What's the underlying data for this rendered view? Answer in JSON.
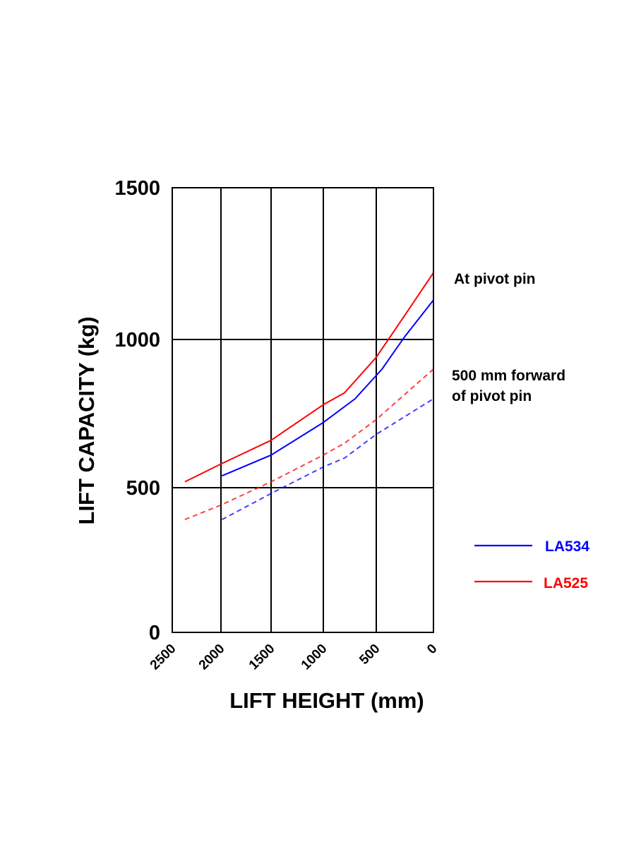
{
  "chart_data": {
    "type": "line",
    "title": "",
    "xlabel": "LIFT HEIGHT (mm)",
    "ylabel": "LIFT CAPACITY (kg)",
    "xlim": [
      2500,
      0
    ],
    "ylim": [
      0,
      1500
    ],
    "x_inverted": true,
    "x_ticks": [
      2500,
      2000,
      1500,
      1000,
      500,
      0
    ],
    "y_ticks": [
      0,
      500,
      1000,
      1500
    ],
    "x_tick_labels": [
      "2500",
      "2000",
      "1500",
      "1000",
      "500",
      "0"
    ],
    "y_tick_labels": [
      "0",
      "500",
      "1000",
      "1500"
    ],
    "grid": true,
    "legend_position": "right",
    "annotations": {
      "pivot": "At pivot pin",
      "forward_line1": "500 mm forward",
      "forward_line2": "of pivot pin"
    },
    "colors": {
      "LA534": "#0000ff",
      "LA525": "#ff0000"
    },
    "legend": [
      {
        "name": "LA534",
        "color": "#0000ff"
      },
      {
        "name": "LA525",
        "color": "#ff0000"
      }
    ],
    "series": [
      {
        "name": "LA534",
        "condition": "At pivot pin",
        "style": "solid",
        "color": "#0000ff",
        "x": [
          1990,
          1500,
          1000,
          700,
          450,
          250,
          0
        ],
        "y": [
          540,
          610,
          720,
          800,
          900,
          1010,
          1130
        ]
      },
      {
        "name": "LA525",
        "condition": "At pivot pin",
        "style": "solid",
        "color": "#ff0000",
        "x": [
          2370,
          2000,
          1750,
          1500,
          1250,
          1000,
          800,
          500,
          250,
          0
        ],
        "y": [
          520,
          580,
          620,
          660,
          720,
          780,
          820,
          940,
          1080,
          1220
        ]
      },
      {
        "name": "LA534",
        "condition": "500 mm forward of pivot pin",
        "style": "dashed",
        "color": "#0000ff",
        "x": [
          1990,
          1500,
          1000,
          800,
          500,
          0
        ],
        "y": [
          390,
          480,
          570,
          600,
          680,
          800
        ]
      },
      {
        "name": "LA525",
        "condition": "500 mm forward of pivot pin",
        "style": "dashed",
        "color": "#ff0000",
        "x": [
          2370,
          2000,
          1500,
          1000,
          800,
          500,
          0
        ],
        "y": [
          390,
          440,
          520,
          610,
          650,
          730,
          900
        ]
      }
    ]
  }
}
